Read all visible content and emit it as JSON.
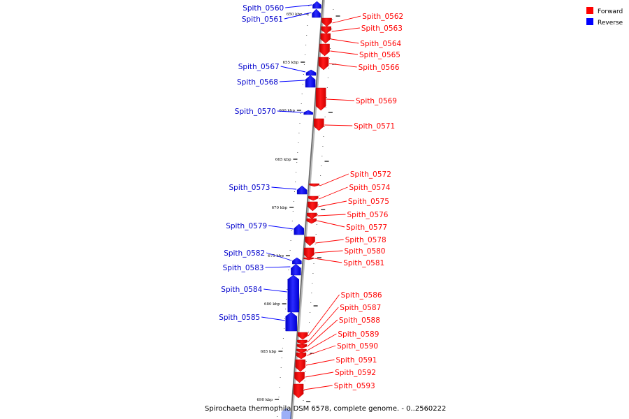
{
  "legend": {
    "items": [
      {
        "label": "Forward",
        "color": "#ff0000"
      },
      {
        "label": "Reverse",
        "color": "#0000ff"
      }
    ]
  },
  "caption": "Spirochaeta thermophila DSM 6578, complete genome. - 0..2560222",
  "ticks": [
    "650 kbp",
    "655 kbp",
    "660 kbp",
    "665 kbp",
    "670 kbp",
    "675 kbp",
    "680 kbp",
    "685 kbp",
    "690 kbp"
  ],
  "genes": {
    "forward": [
      "Spith_0562",
      "Spith_0563",
      "Spith_0564",
      "Spith_0565",
      "Spith_0566",
      "Spith_0569",
      "Spith_0571",
      "Spith_0572",
      "Spith_0574",
      "Spith_0575",
      "Spith_0576",
      "Spith_0577",
      "Spith_0578",
      "Spith_0580",
      "Spith_0581",
      "Spith_0586",
      "Spith_0587",
      "Spith_0588",
      "Spith_0589",
      "Spith_0590",
      "Spith_0591",
      "Spith_0592",
      "Spith_0593"
    ],
    "reverse": [
      "Spith_0560",
      "Spith_0561",
      "Spith_0567",
      "Spith_0568",
      "Spith_0570",
      "Spith_0573",
      "Spith_0579",
      "Spith_0582",
      "Spith_0583",
      "Spith_0584",
      "Spith_0585"
    ]
  }
}
